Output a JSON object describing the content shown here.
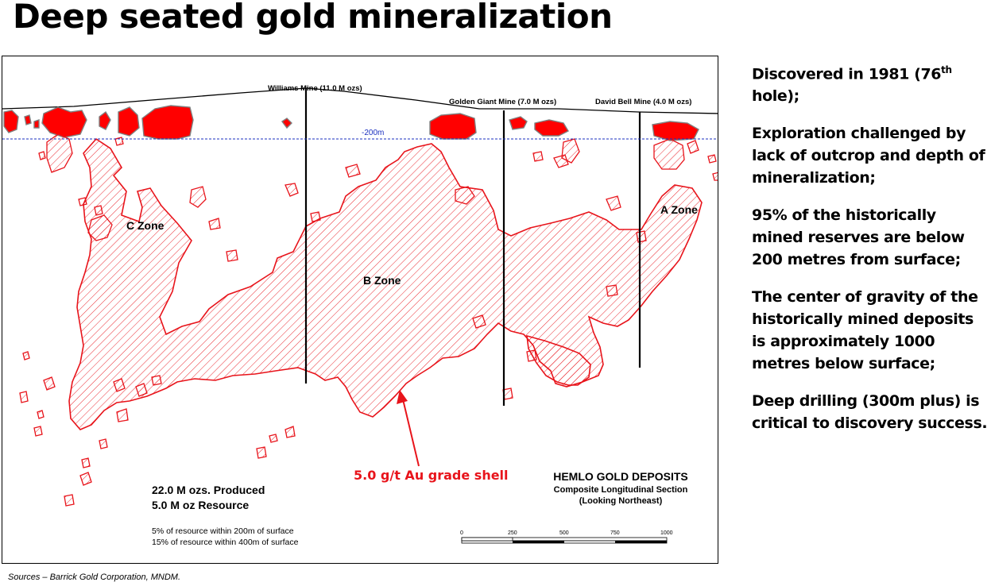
{
  "title": "Deep seated gold mineralization",
  "notes": {
    "discovered_pre": "Discovered in 1981 (76",
    "discovered_sup": "th",
    "discovered_post": " hole);",
    "exploration": "Exploration challenged by lack of outcrop and depth of mineralization;",
    "historic_reserves": "95% of the historically mined reserves are below 200 metres from surface;",
    "center_of_gravity": "The center of gravity of the historically mined deposits is approximately 1000 metres below surface;",
    "deep_drilling": "Deep drilling (300m plus) is critical to  discovery success."
  },
  "figure": {
    "mines": {
      "williams": "Williams Mine (11.0 M ozs)",
      "golden_giant": "Golden Giant Mine (7.0 M ozs)",
      "david_bell": "David Bell Mine (4.0 M ozs)"
    },
    "depth_label": "-200m",
    "zones": {
      "c": "C Zone",
      "b": "B Zone",
      "a": "A Zone"
    },
    "grade_shell_label": "5.0 g/t Au grade shell",
    "produced": "22.0 M ozs. Produced",
    "resource": "5.0 M oz Resource",
    "resource_200": "5% of resource within 200m of surface",
    "resource_400": "15% of resource within 400m of surface",
    "deposit_title": "HEMLO GOLD DEPOSITS",
    "section_title": "Composite Longitudinal Section",
    "looking": "(Looking Northeast)",
    "scale_labels": [
      "0",
      "250",
      "500",
      "750",
      "1000"
    ],
    "colors": {
      "ore": "#e8141b",
      "near_surface": "#ff0000",
      "outline": "#7f7f7f",
      "depth_line": "#1a2fbf",
      "grade_label": "#e8141b"
    }
  },
  "sources": "Sources – Barrick Gold Corporation, MNDM."
}
